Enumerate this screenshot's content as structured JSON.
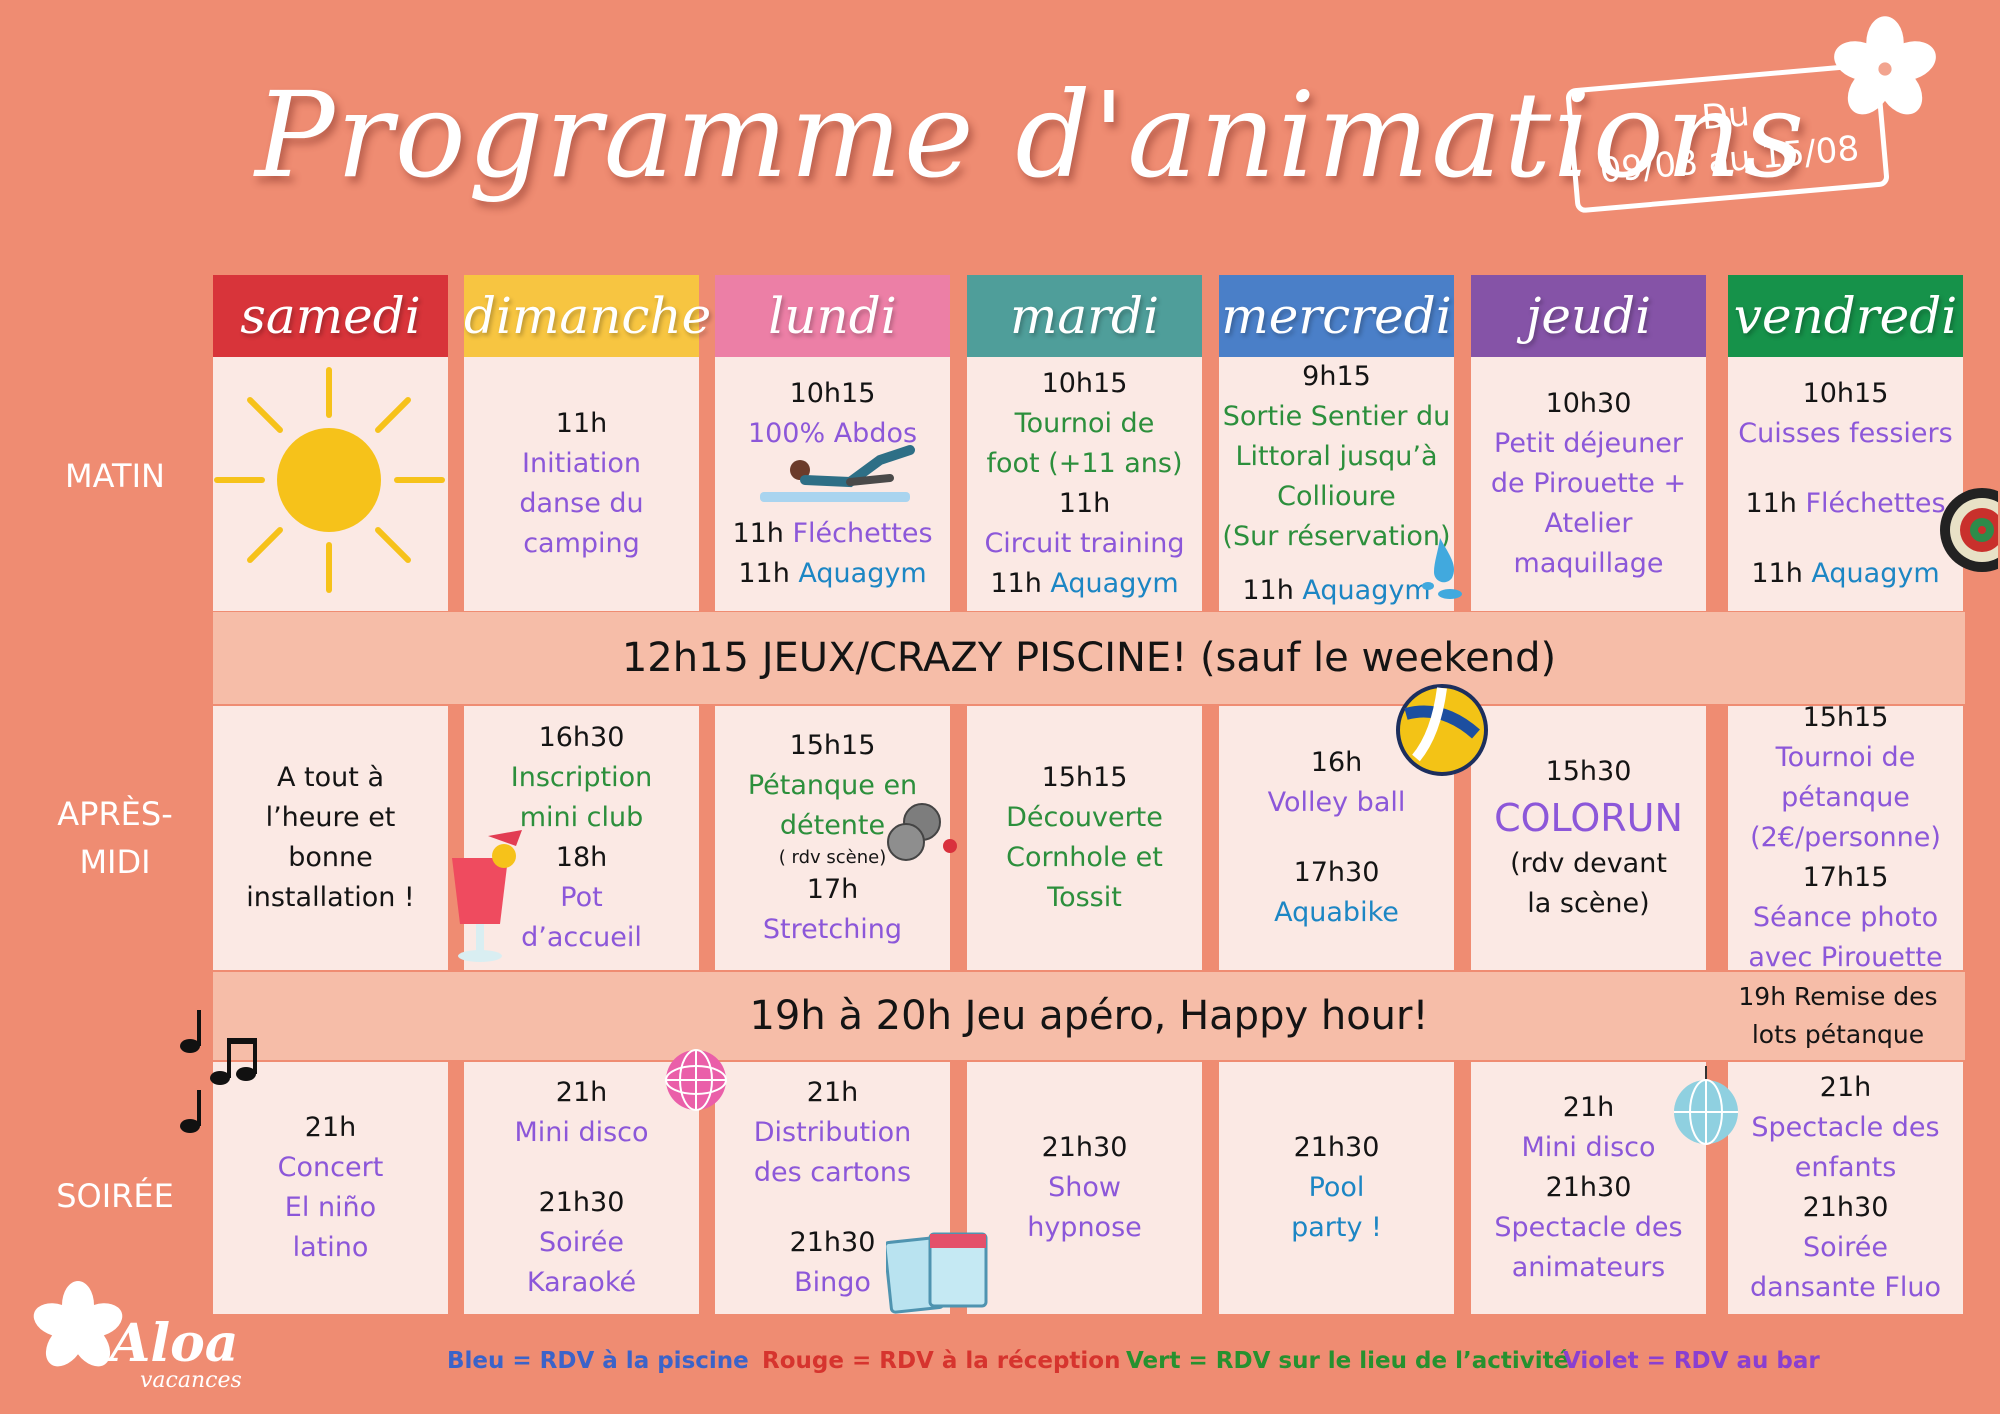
{
  "title": "Programme d'animations",
  "dates": {
    "line1": "Du",
    "line2": "09/08 au 15/08"
  },
  "days": [
    {
      "label": "samedi",
      "color": "#d8343a"
    },
    {
      "label": "dimanche",
      "color": "#f7c541"
    },
    {
      "label": "lundi",
      "color": "#ec7fa6"
    },
    {
      "label": "mardi",
      "color": "#4f9e9a"
    },
    {
      "label": "mercredi",
      "color": "#4a7fc8"
    },
    {
      "label": "jeudi",
      "color": "#8553a7"
    },
    {
      "label": "vendredi",
      "color": "#16924a"
    }
  ],
  "rows": {
    "matin": "MATIN",
    "apres_midi_1": "APRÈS-",
    "apres_midi_2": "MIDI",
    "soiree": "SOIRÉE"
  },
  "bands": {
    "midi": "12h15 JEUX/CRAZY PISCINE! (sauf le weekend)",
    "apero": "19h à 20h Jeu apéro, Happy hour!",
    "apero_note": [
      "19h Remise des",
      "lots pétanque"
    ]
  },
  "matin": [
    [],
    [
      {
        "t": "11h",
        "c": "k"
      },
      {
        "t": "Initiation",
        "c": "p"
      },
      {
        "t": "danse du",
        "c": "p"
      },
      {
        "t": "camping",
        "c": "p"
      }
    ],
    [
      {
        "t": "10h15",
        "c": "k"
      },
      {
        "t": "100% Abdos",
        "c": "p"
      },
      {
        "t": "",
        "c": "k"
      },
      {
        "t": "",
        "c": "k"
      },
      {
        "t": "11h ",
        "c": "k",
        "s": "Fléchettes",
        "sc": "p"
      },
      {
        "t": "11h ",
        "c": "k",
        "s": "Aquagym",
        "sc": "b"
      }
    ],
    [
      {
        "t": "10h15",
        "c": "k"
      },
      {
        "t": "Tournoi de",
        "c": "g"
      },
      {
        "t": "foot (+11 ans)",
        "c": "g"
      },
      {
        "t": "11h",
        "c": "k"
      },
      {
        "t": "Circuit training",
        "c": "p"
      },
      {
        "t": "11h ",
        "c": "k",
        "s": "Aquagym",
        "sc": "b"
      }
    ],
    [
      {
        "t": "9h15",
        "c": "k"
      },
      {
        "t": "Sortie Sentier du",
        "c": "g"
      },
      {
        "t": "Littoral jusqu’à",
        "c": "g"
      },
      {
        "t": "Collioure",
        "c": "g"
      },
      {
        "t": "(Sur réservation)",
        "c": "g"
      },
      {
        "t": "",
        "c": "k"
      },
      {
        "t": "11h ",
        "c": "k",
        "s": "Aquagym",
        "sc": "b"
      }
    ],
    [
      {
        "t": "10h30",
        "c": "k"
      },
      {
        "t": "Petit déjeuner",
        "c": "p"
      },
      {
        "t": "de Pirouette +",
        "c": "p"
      },
      {
        "t": "Atelier",
        "c": "p"
      },
      {
        "t": "maquillage",
        "c": "p"
      }
    ],
    [
      {
        "t": "10h15",
        "c": "k"
      },
      {
        "t": "Cuisses fessiers",
        "c": "p"
      },
      {
        "t": "",
        "c": "k"
      },
      {
        "t": "11h ",
        "c": "k",
        "s": "Fléchettes",
        "sc": "p"
      },
      {
        "t": "",
        "c": "k"
      },
      {
        "t": "11h ",
        "c": "k",
        "s": "Aquagym",
        "sc": "b"
      }
    ]
  ],
  "apres_midi": [
    [
      {
        "t": "A tout à",
        "c": "k"
      },
      {
        "t": "l’heure et",
        "c": "k"
      },
      {
        "t": "bonne",
        "c": "k"
      },
      {
        "t": "installation !",
        "c": "k"
      }
    ],
    [
      {
        "t": "16h30",
        "c": "k"
      },
      {
        "t": "Inscription",
        "c": "g"
      },
      {
        "t": "mini club",
        "c": "g"
      },
      {
        "t": "18h",
        "c": "k"
      },
      {
        "t": "Pot",
        "c": "p"
      },
      {
        "t": "d’accueil",
        "c": "p"
      }
    ],
    [
      {
        "t": "15h15",
        "c": "k"
      },
      {
        "t": "Pétanque en",
        "c": "g"
      },
      {
        "t": "détente",
        "c": "g"
      },
      {
        "t": "( rdv scène)",
        "c": "k",
        "small": true
      },
      {
        "t": "17h",
        "c": "k"
      },
      {
        "t": "Stretching",
        "c": "p"
      }
    ],
    [
      {
        "t": "15h15",
        "c": "k"
      },
      {
        "t": "Découverte",
        "c": "g"
      },
      {
        "t": "Cornhole et",
        "c": "g"
      },
      {
        "t": "Tossit",
        "c": "g"
      }
    ],
    [
      {
        "t": "16h",
        "c": "k"
      },
      {
        "t": "Volley ball",
        "c": "p"
      },
      {
        "t": "",
        "c": "k"
      },
      {
        "t": "17h30",
        "c": "k"
      },
      {
        "t": "Aquabike",
        "c": "b"
      }
    ],
    [
      {
        "t": "15h30",
        "c": "k"
      },
      {
        "t": "COLORUN",
        "c": "p",
        "big": true
      },
      {
        "t": "(rdv devant",
        "c": "k"
      },
      {
        "t": "la scène)",
        "c": "k"
      }
    ],
    [
      {
        "t": "15h15",
        "c": "k"
      },
      {
        "t": "Tournoi de",
        "c": "p"
      },
      {
        "t": "pétanque",
        "c": "p"
      },
      {
        "t": "(2€/personne)",
        "c": "p"
      },
      {
        "t": "17h15",
        "c": "k"
      },
      {
        "t": "Séance photo",
        "c": "p"
      },
      {
        "t": "avec Pirouette",
        "c": "p"
      }
    ]
  ],
  "soiree": [
    [
      {
        "t": "21h",
        "c": "k"
      },
      {
        "t": "Concert",
        "c": "p"
      },
      {
        "t": "El niño",
        "c": "p"
      },
      {
        "t": "latino",
        "c": "p"
      }
    ],
    [
      {
        "t": "21h",
        "c": "k"
      },
      {
        "t": "Mini disco",
        "c": "p"
      },
      {
        "t": "",
        "c": "k"
      },
      {
        "t": "21h30",
        "c": "k"
      },
      {
        "t": "Soirée",
        "c": "p"
      },
      {
        "t": "Karaoké",
        "c": "p"
      }
    ],
    [
      {
        "t": "21h",
        "c": "k"
      },
      {
        "t": "Distribution",
        "c": "p"
      },
      {
        "t": "des cartons",
        "c": "p"
      },
      {
        "t": "",
        "c": "k"
      },
      {
        "t": "21h30",
        "c": "k"
      },
      {
        "t": "Bingo",
        "c": "p"
      }
    ],
    [
      {
        "t": "21h30",
        "c": "k"
      },
      {
        "t": "Show",
        "c": "p"
      },
      {
        "t": "hypnose",
        "c": "p"
      }
    ],
    [
      {
        "t": "21h30",
        "c": "k"
      },
      {
        "t": "Pool",
        "c": "b"
      },
      {
        "t": "party !",
        "c": "b"
      }
    ],
    [
      {
        "t": "21h",
        "c": "k"
      },
      {
        "t": "Mini disco",
        "c": "p"
      },
      {
        "t": "21h30",
        "c": "k"
      },
      {
        "t": "Spectacle des",
        "c": "p"
      },
      {
        "t": "animateurs",
        "c": "p"
      }
    ],
    [
      {
        "t": "21h",
        "c": "k"
      },
      {
        "t": "Spectacle des",
        "c": "p"
      },
      {
        "t": "enfants",
        "c": "p"
      },
      {
        "t": "21h30",
        "c": "k"
      },
      {
        "t": "Soirée",
        "c": "p"
      },
      {
        "t": "dansante Fluo",
        "c": "p"
      }
    ]
  ],
  "legend": [
    {
      "text": "Bleu = RDV à la piscine",
      "color": "#3b63c9"
    },
    {
      "text": "Rouge = RDV à la réception",
      "color": "#d6342e"
    },
    {
      "text": "Vert = RDV sur le lieu de l’activité",
      "color": "#26912f"
    },
    {
      "text": "Violet = RDV au bar",
      "color": "#8a3fd0"
    }
  ],
  "logo": {
    "name": "Aloa",
    "sub": "vacances"
  },
  "colors": {
    "background": "#ef8c72",
    "cell": "#fbe9e4",
    "band": "#f6bda8",
    "purple": "#8c57d9",
    "blue": "#1c86c4",
    "green": "#2c8f3c"
  }
}
